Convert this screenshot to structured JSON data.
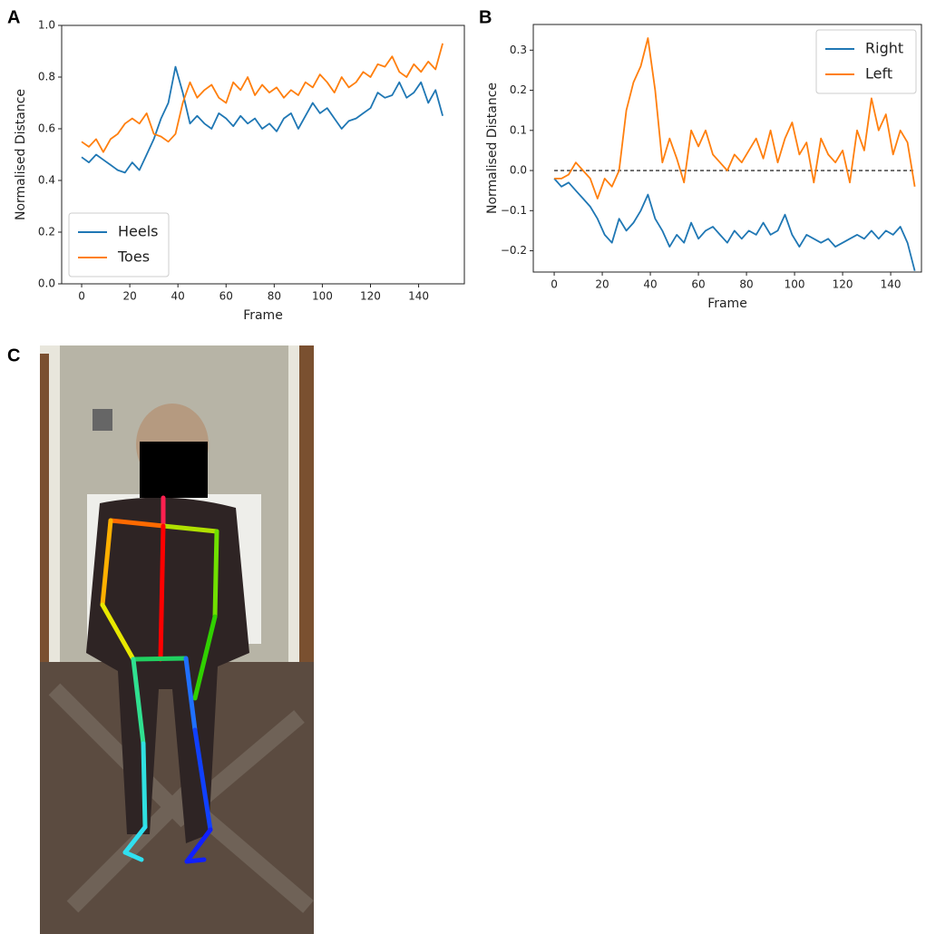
{
  "chart_data": [
    {
      "type": "line",
      "panel_label": "A",
      "xlabel": "Frame",
      "ylabel": "Normalised Distance",
      "x": [
        0,
        3,
        6,
        9,
        12,
        15,
        18,
        21,
        24,
        27,
        30,
        33,
        36,
        39,
        42,
        45,
        48,
        51,
        54,
        57,
        60,
        63,
        66,
        69,
        72,
        75,
        78,
        81,
        84,
        87,
        90,
        93,
        96,
        99,
        102,
        105,
        108,
        111,
        114,
        117,
        120,
        123,
        126,
        129,
        132,
        135,
        138,
        141,
        144,
        147,
        150
      ],
      "series": [
        {
          "name": "Heels",
          "color": "#1f77b4",
          "values": [
            0.49,
            0.47,
            0.5,
            0.48,
            0.46,
            0.44,
            0.43,
            0.47,
            0.44,
            0.5,
            0.56,
            0.64,
            0.7,
            0.84,
            0.74,
            0.62,
            0.65,
            0.62,
            0.6,
            0.66,
            0.64,
            0.61,
            0.65,
            0.62,
            0.64,
            0.6,
            0.62,
            0.59,
            0.64,
            0.66,
            0.6,
            0.65,
            0.7,
            0.66,
            0.68,
            0.64,
            0.6,
            0.63,
            0.64,
            0.66,
            0.68,
            0.74,
            0.72,
            0.73,
            0.78,
            0.72,
            0.74,
            0.78,
            0.7,
            0.75,
            0.65
          ]
        },
        {
          "name": "Toes",
          "color": "#ff7f0e",
          "values": [
            0.55,
            0.53,
            0.56,
            0.51,
            0.56,
            0.58,
            0.62,
            0.64,
            0.62,
            0.66,
            0.58,
            0.57,
            0.55,
            0.58,
            0.7,
            0.78,
            0.72,
            0.75,
            0.77,
            0.72,
            0.7,
            0.78,
            0.75,
            0.8,
            0.73,
            0.77,
            0.74,
            0.76,
            0.72,
            0.75,
            0.73,
            0.78,
            0.76,
            0.81,
            0.78,
            0.74,
            0.8,
            0.76,
            0.78,
            0.82,
            0.8,
            0.85,
            0.84,
            0.88,
            0.82,
            0.8,
            0.85,
            0.82,
            0.86,
            0.83,
            0.93
          ]
        }
      ],
      "xlim": [
        -8.3,
        159
      ],
      "ylim": [
        0,
        1
      ],
      "xticks": [
        0,
        20,
        40,
        60,
        80,
        100,
        120,
        140
      ],
      "yticks": [
        {
          "value": 0,
          "label": "0.0"
        },
        0.2,
        0.4,
        0.6,
        0.8,
        {
          "value": 1,
          "label": "1.0"
        }
      ],
      "legend": "lower left"
    },
    {
      "type": "line",
      "panel_label": "B",
      "xlabel": "Frame",
      "ylabel": "Normalised Distance",
      "x": [
        0,
        3,
        6,
        9,
        12,
        15,
        18,
        21,
        24,
        27,
        30,
        33,
        36,
        39,
        42,
        45,
        48,
        51,
        54,
        57,
        60,
        63,
        66,
        69,
        72,
        75,
        78,
        81,
        84,
        87,
        90,
        93,
        96,
        99,
        102,
        105,
        108,
        111,
        114,
        117,
        120,
        123,
        126,
        129,
        132,
        135,
        138,
        141,
        144,
        147,
        150
      ],
      "series": [
        {
          "name": "Right",
          "color": "#1f77b4",
          "values": [
            -0.02,
            -0.04,
            -0.03,
            -0.05,
            -0.07,
            -0.09,
            -0.12,
            -0.16,
            -0.18,
            -0.12,
            -0.15,
            -0.13,
            -0.1,
            -0.06,
            -0.12,
            -0.15,
            -0.19,
            -0.16,
            -0.18,
            -0.13,
            -0.17,
            -0.15,
            -0.14,
            -0.16,
            -0.18,
            -0.15,
            -0.17,
            -0.15,
            -0.16,
            -0.13,
            -0.16,
            -0.15,
            -0.11,
            -0.16,
            -0.19,
            -0.16,
            -0.17,
            -0.18,
            -0.17,
            -0.19,
            -0.18,
            -0.17,
            -0.16,
            -0.17,
            -0.15,
            -0.17,
            -0.15,
            -0.16,
            -0.14,
            -0.18,
            -0.25
          ]
        },
        {
          "name": "Left",
          "color": "#ff7f0e",
          "values": [
            -0.02,
            -0.02,
            -0.01,
            0.02,
            0.0,
            -0.02,
            -0.07,
            -0.02,
            -0.04,
            0.0,
            0.15,
            0.22,
            0.26,
            0.33,
            0.2,
            0.02,
            0.08,
            0.03,
            -0.03,
            0.1,
            0.06,
            0.1,
            0.04,
            0.02,
            0.0,
            0.04,
            0.02,
            0.05,
            0.08,
            0.03,
            0.1,
            0.02,
            0.08,
            0.12,
            0.04,
            0.07,
            -0.03,
            0.08,
            0.04,
            0.02,
            0.05,
            -0.03,
            0.1,
            0.05,
            0.18,
            0.1,
            0.14,
            0.04,
            0.1,
            0.07,
            -0.04
          ]
        }
      ],
      "hline": 0,
      "xlim": [
        -8.7,
        152.8
      ],
      "ylim": [
        -0.253,
        0.364
      ],
      "xticks": [
        0,
        20,
        40,
        60,
        80,
        100,
        120,
        140
      ],
      "yticks": [
        {
          "value": -0.2,
          "label": "−0.2"
        },
        {
          "value": -0.1,
          "label": "−0.1"
        },
        {
          "value": 0,
          "label": "0.0"
        },
        0.1,
        0.2,
        0.3
      ],
      "legend": "upper right"
    }
  ],
  "photo": {
    "panel_label": "C"
  }
}
